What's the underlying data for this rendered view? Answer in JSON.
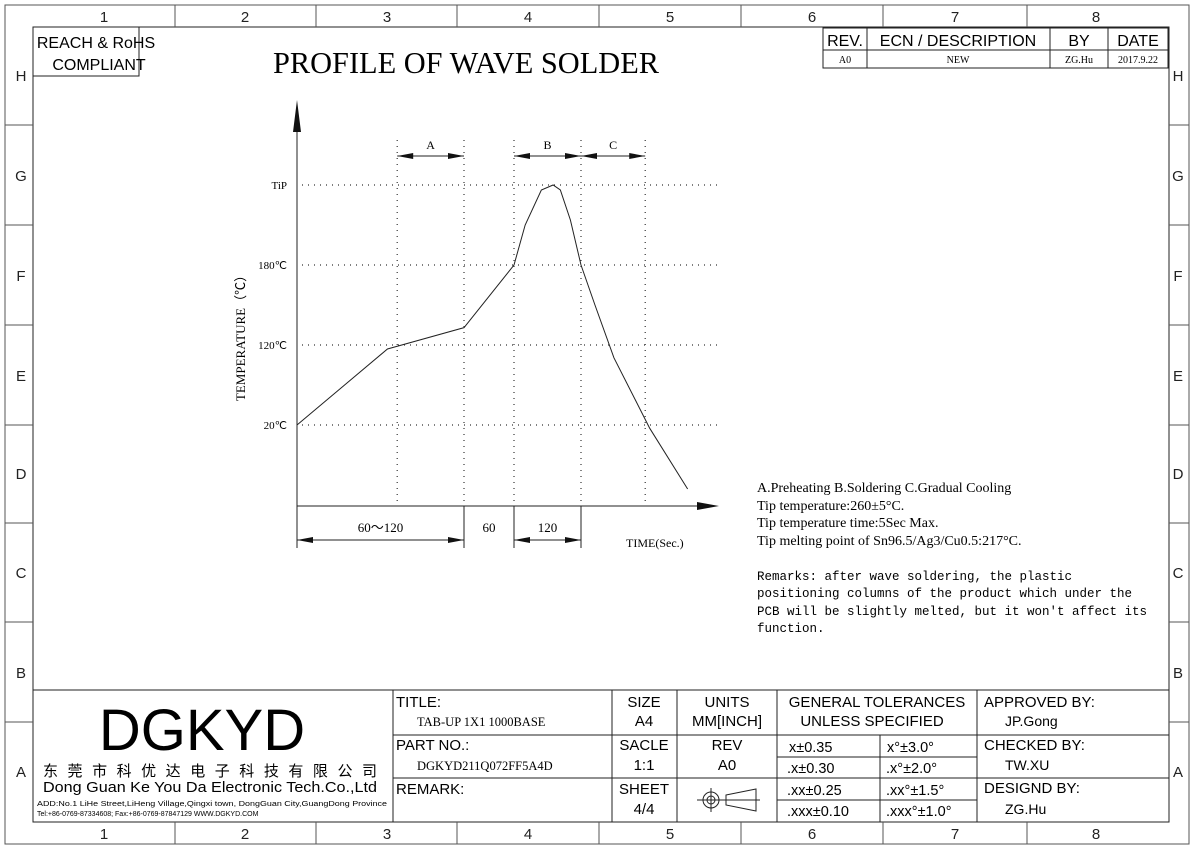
{
  "frame": {
    "columns": [
      "1",
      "2",
      "3",
      "4",
      "5",
      "6",
      "7",
      "8"
    ],
    "rows": [
      "H",
      "G",
      "F",
      "E",
      "D",
      "C",
      "B",
      "A"
    ]
  },
  "compliance": {
    "line1": "REACH & RoHS",
    "line2": "COMPLIANT"
  },
  "drawing_title": "PROFILE OF WAVE SOLDER",
  "revision_table": {
    "headers": [
      "REV.",
      "ECN / DESCRIPTION",
      "BY",
      "DATE"
    ],
    "rows": [
      [
        "A0",
        "NEW",
        "ZG.Hu",
        "2017.9.22"
      ]
    ]
  },
  "chart_data": {
    "type": "line",
    "xlabel": "TIME(Sec.)",
    "ylabel": "TEMPERATURE（℃）",
    "y_ticks": [
      {
        "label": "20℃",
        "value": 20
      },
      {
        "label": "120℃",
        "value": 120
      },
      {
        "label": "180℃",
        "value": 180
      },
      {
        "label": "TiP",
        "value": 260
      }
    ],
    "phases": [
      {
        "label": "A",
        "start": 72,
        "end": 120
      },
      {
        "label": "B",
        "start": 180,
        "end": 300
      },
      {
        "label": "C",
        "start": 300,
        "end": 415
      }
    ],
    "time_segments": [
      {
        "label": "60～120",
        "start": 0,
        "end": 120
      },
      {
        "label": "60",
        "start": 120,
        "end": 180
      },
      {
        "label": "120",
        "start": 180,
        "end": 300
      }
    ],
    "series": [
      {
        "points": [
          [
            0,
            20
          ],
          [
            65,
            115
          ],
          [
            120,
            133
          ],
          [
            180,
            180
          ],
          [
            200,
            220
          ],
          [
            229,
            255
          ],
          [
            250,
            260
          ],
          [
            263,
            255
          ],
          [
            281,
            225
          ],
          [
            300,
            180
          ],
          [
            325,
            150
          ],
          [
            359,
            104
          ],
          [
            423,
            16
          ],
          [
            491,
            -60
          ]
        ]
      }
    ],
    "grid": true
  },
  "notes": {
    "lines": [
      "A.Preheating  B.Soldering  C.Gradual Cooling",
      "Tip temperature:260±5°C.",
      "Tip temperature time:5Sec Max.",
      "Tip melting point of Sn96.5/Ag3/Cu0.5:217°C."
    ],
    "remarks": [
      "Remarks: after wave soldering, the plastic",
      "positioning columns of the product  which under the",
      "PCB will be slightly melted, but it won't affect its",
      "function."
    ]
  },
  "title_block": {
    "logo": "DGKYD",
    "company_cn": "东 莞 市 科 优 达 电 子 科 技 有 限 公 司",
    "company_en": "Dong Guan Ke You Da Electronic Tech.Co.,Ltd",
    "address": "ADD:No.1 LiHe Street,LiHeng Village,Qingxi town, DongGuan City,GuangDong Province",
    "contact": "Tel:+86-0769-87334608; Fax:+86-0769-87847129  WWW.DGKYD.COM",
    "title_label": "TITLE:",
    "title_value": "TAB-UP 1X1 1000BASE",
    "part_label": "PART NO.:",
    "part_value": "DGKYD211Q072FF5A4D",
    "remark_label": "REMARK:",
    "size_label": "SIZE",
    "size_value": "A4",
    "units_label": "UNITS",
    "units_value": "MM[INCH]",
    "scale_label": "SACLE",
    "scale_value": "1:1",
    "rev_label": "REV",
    "rev_value": "A0",
    "sheet_label": "SHEET",
    "sheet_value": "4/4",
    "projection_icon": "third-angle-projection-icon",
    "tolerances_line1": "GENERAL TOLERANCES",
    "tolerances_line2": "UNLESS SPECIFIED",
    "tolerances": [
      [
        "x±0.35",
        "x°±3.0°"
      ],
      [
        ".x±0.30",
        ".x°±2.0°"
      ],
      [
        ".xx±0.25",
        ".xx°±1.5°"
      ],
      [
        ".xxx±0.10",
        ".xxx°±1.0°"
      ]
    ],
    "approved_label": "APPROVED BY:",
    "approved_value": "JP.Gong",
    "checked_label": "CHECKED BY:",
    "checked_value": "TW.XU",
    "designed_label": "DESIGND BY:",
    "designed_value": "ZG.Hu"
  }
}
